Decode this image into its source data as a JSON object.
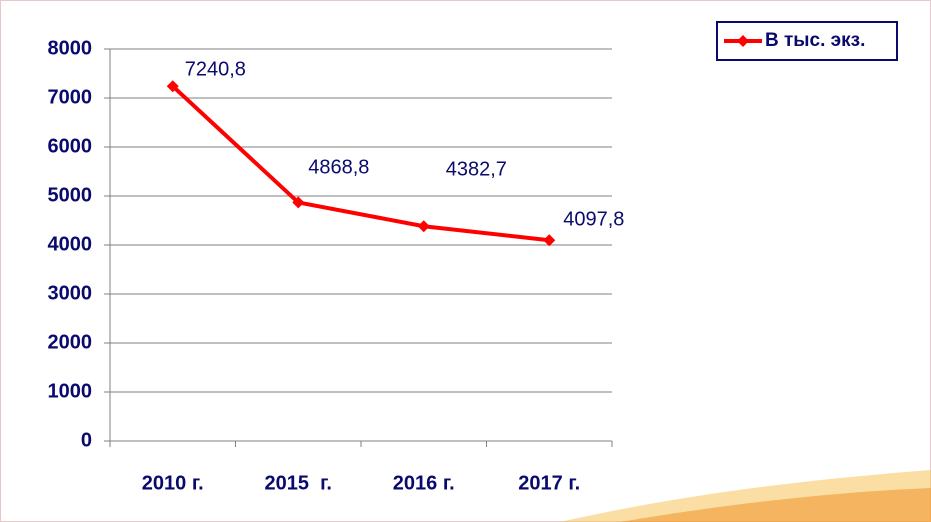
{
  "chart_data": {
    "type": "line",
    "categories": [
      "2010 г.",
      "2015  г.",
      "2016 г.",
      "2017 г."
    ],
    "series": [
      {
        "name": "В тыс. экз.",
        "color": "#ff0000",
        "values": [
          7240.8,
          4868.8,
          4382.7,
          4097.8
        ],
        "value_labels": [
          "7240,8",
          "4868,8",
          "4382,7",
          "4097,8"
        ]
      }
    ],
    "ylim": [
      0,
      8000
    ],
    "yticks": [
      0,
      1000,
      2000,
      3000,
      4000,
      5000,
      6000,
      7000,
      8000
    ],
    "grid": true,
    "legend": "top-right"
  }
}
